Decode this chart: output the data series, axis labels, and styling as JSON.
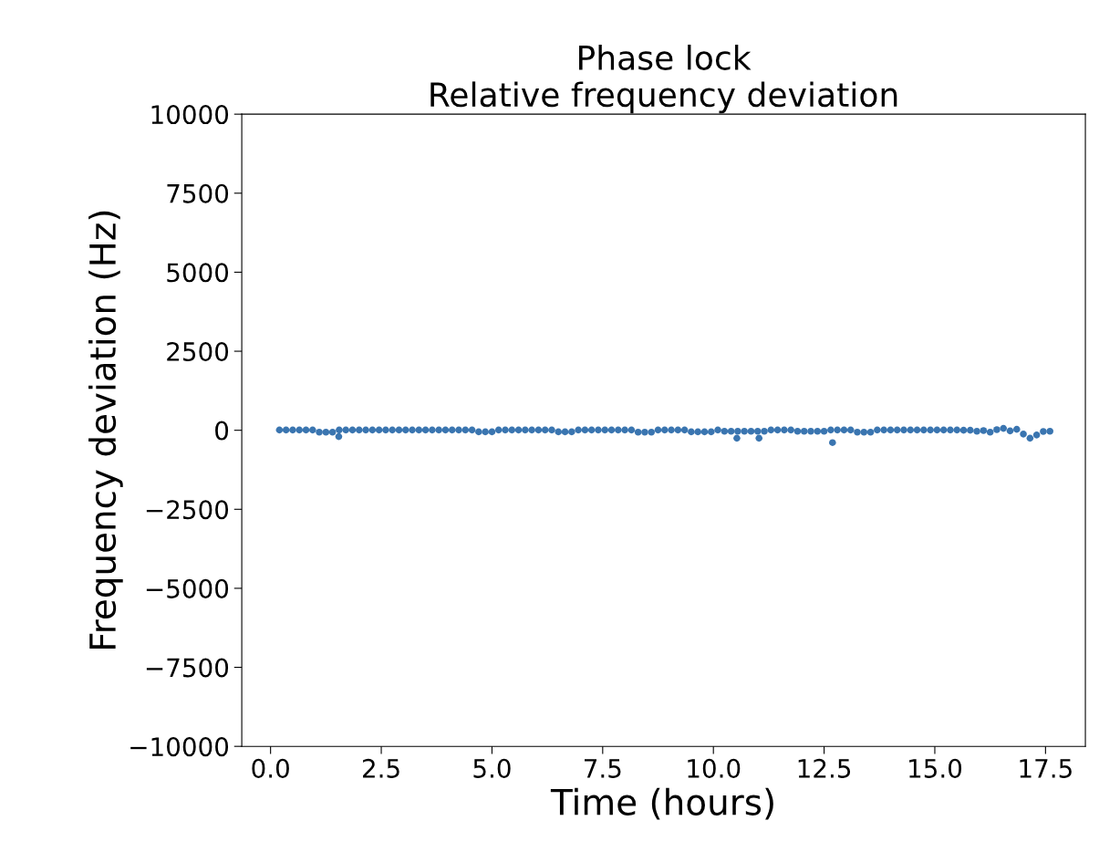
{
  "chart_data": {
    "type": "scatter",
    "title": "Phase lock\nRelative frequency deviation",
    "xlabel": "Time (hours)",
    "ylabel": "Frequency deviation (Hz)",
    "xlim": [
      -0.65,
      18.4
    ],
    "xticks": [
      {
        "value": 0,
        "label": "0.0"
      },
      2.5,
      {
        "value": 5,
        "label": "5.0"
      },
      7.5,
      {
        "value": 10,
        "label": "10.0"
      },
      12.5,
      {
        "value": 15,
        "label": "15.0"
      },
      17.5
    ],
    "ylim": [
      -10000,
      10000
    ],
    "yticks": [
      {
        "value": -10000,
        "label": "−10000"
      },
      {
        "value": -7500,
        "label": "−7500"
      },
      {
        "value": -5000,
        "label": "−5000"
      },
      {
        "value": -2500,
        "label": "−2500"
      },
      0,
      2500,
      5000,
      7500,
      10000
    ],
    "grid": false,
    "marker": "circle",
    "series": [
      {
        "color": "#3a75b0",
        "x": [
          0.2,
          0.35,
          0.5,
          0.65,
          0.8,
          0.95,
          1.1,
          1.25,
          1.4,
          1.55,
          1.7,
          1.85,
          2.0,
          2.15,
          2.3,
          2.45,
          2.6,
          2.75,
          2.9,
          3.05,
          3.2,
          3.35,
          3.5,
          3.65,
          3.8,
          3.95,
          4.1,
          4.25,
          4.4,
          4.55,
          4.7,
          4.85,
          5.0,
          5.15,
          5.3,
          5.45,
          5.6,
          5.75,
          5.9,
          6.05,
          6.2,
          6.35,
          6.5,
          6.65,
          6.8,
          6.95,
          7.1,
          7.25,
          7.4,
          7.55,
          7.7,
          7.85,
          8.0,
          8.15,
          8.3,
          8.45,
          8.6,
          8.75,
          8.9,
          9.05,
          9.2,
          9.35,
          9.5,
          9.65,
          9.8,
          9.95,
          10.1,
          10.25,
          10.4,
          10.55,
          10.7,
          10.85,
          11.0,
          11.15,
          11.3,
          11.45,
          11.6,
          11.75,
          11.9,
          12.05,
          12.2,
          12.35,
          12.5,
          12.65,
          12.8,
          12.95,
          13.1,
          13.25,
          13.4,
          13.55,
          13.7,
          13.85,
          14.0,
          14.15,
          14.3,
          14.45,
          14.6,
          14.75,
          14.9,
          15.05,
          15.2,
          15.35,
          15.5,
          15.65,
          15.8,
          15.95,
          16.1,
          16.25,
          16.4,
          16.55,
          16.7,
          16.85,
          17.0,
          17.15,
          17.3,
          17.45,
          17.6,
          1.54,
          10.53,
          11.03,
          12.69
        ],
        "values": [
          10,
          10,
          10,
          10,
          10,
          10,
          -60,
          -60,
          -60,
          10,
          10,
          10,
          10,
          10,
          10,
          10,
          10,
          10,
          10,
          10,
          10,
          10,
          10,
          10,
          10,
          10,
          10,
          10,
          10,
          10,
          -50,
          -50,
          -50,
          10,
          10,
          10,
          10,
          10,
          10,
          10,
          10,
          10,
          -50,
          -50,
          -50,
          10,
          10,
          10,
          10,
          10,
          10,
          10,
          10,
          10,
          -60,
          -60,
          -60,
          10,
          10,
          10,
          10,
          10,
          -50,
          -50,
          -50,
          -50,
          10,
          -30,
          -30,
          -30,
          -30,
          -30,
          -30,
          -30,
          10,
          10,
          10,
          10,
          -30,
          -30,
          -30,
          -30,
          -30,
          10,
          10,
          10,
          10,
          -60,
          -60,
          -60,
          10,
          10,
          10,
          10,
          10,
          10,
          10,
          10,
          10,
          10,
          10,
          10,
          10,
          0,
          0,
          -30,
          -10,
          -60,
          20,
          60,
          -20,
          30,
          -120,
          -250,
          -150,
          -40,
          -30,
          -200,
          -250,
          -250,
          -390
        ]
      }
    ]
  }
}
